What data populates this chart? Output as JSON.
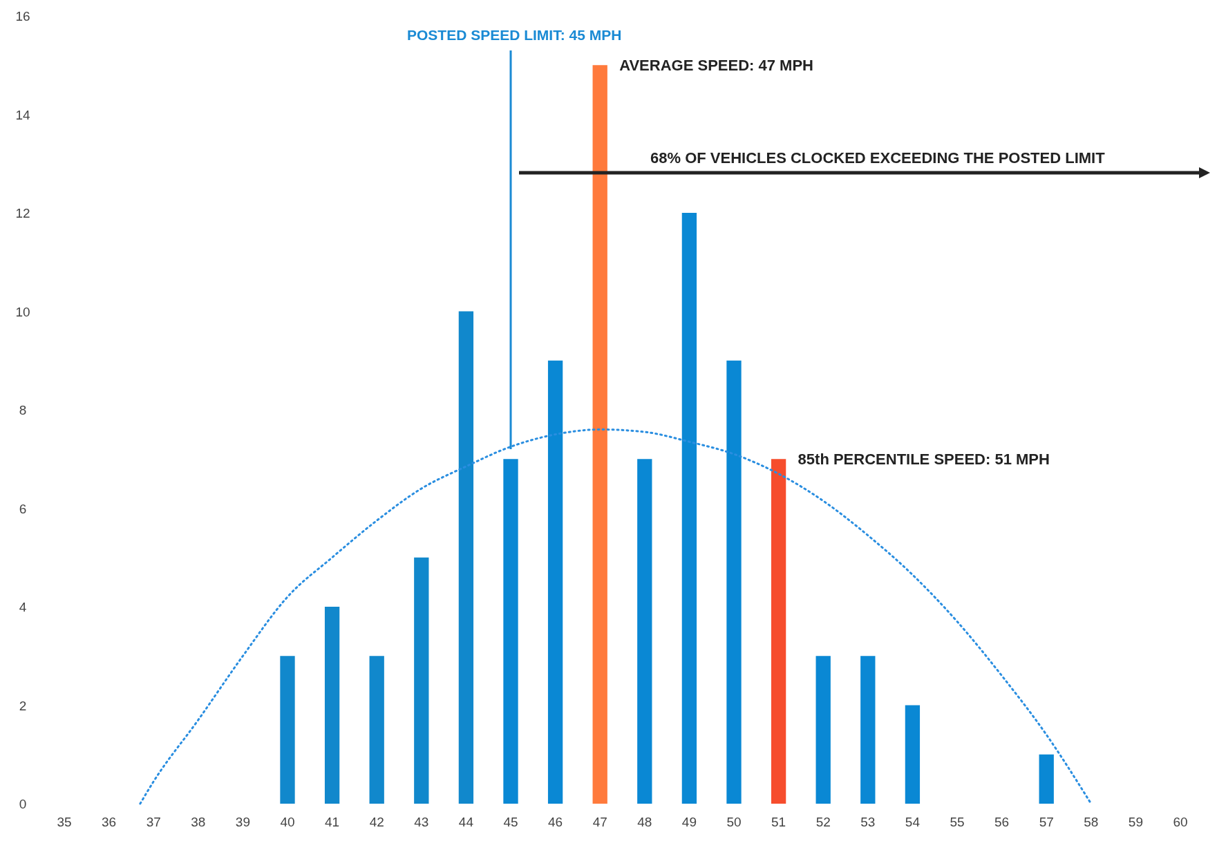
{
  "chart_data": {
    "type": "bar",
    "x": [
      35,
      36,
      37,
      38,
      39,
      40,
      41,
      42,
      43,
      44,
      45,
      46,
      47,
      48,
      49,
      50,
      51,
      52,
      53,
      54,
      55,
      56,
      57,
      58,
      59,
      60
    ],
    "series": [
      {
        "values": [
          0,
          0,
          0,
          0,
          0,
          3,
          4,
          3,
          5,
          10,
          7,
          9,
          15,
          7,
          12,
          9,
          7,
          3,
          3,
          2,
          0,
          0,
          1,
          0,
          0,
          0
        ],
        "colors": [
          "#0a88d4",
          "#0a88d4",
          "#0a88d4",
          "#0a88d4",
          "#0a88d4",
          "#1188cc",
          "#1188cc",
          "#1188cc",
          "#1188cc",
          "#1188cc",
          "#0a88d4",
          "#0a88d4",
          "#ff7a3c",
          "#0a88d4",
          "#0a88d4",
          "#0a88d4",
          "#f64d2d",
          "#0a88d4",
          "#0a88d4",
          "#0a88d4",
          "#0a88d4",
          "#0a88d4",
          "#0a88d4",
          "#0a88d4",
          "#0a88d4",
          "#0a88d4"
        ]
      },
      {
        "type": "line",
        "color": "#2a8ee0",
        "line_style": "dotted",
        "x": [
          36.7,
          37,
          38,
          39,
          40,
          41,
          42,
          43,
          44,
          45,
          46,
          47,
          48,
          49,
          50,
          51,
          52,
          53,
          54,
          55,
          56,
          57,
          58
        ],
        "values": [
          0,
          0.45,
          1.7,
          3,
          4.2,
          5,
          5.75,
          6.4,
          6.85,
          7.25,
          7.5,
          7.6,
          7.55,
          7.35,
          7.1,
          6.7,
          6.15,
          5.45,
          4.65,
          3.7,
          2.6,
          1.4,
          0
        ]
      }
    ],
    "xlim": [
      35,
      60
    ],
    "xticks": [
      35,
      36,
      37,
      38,
      39,
      40,
      41,
      42,
      43,
      44,
      45,
      46,
      47,
      48,
      49,
      50,
      51,
      52,
      53,
      54,
      55,
      56,
      57,
      58,
      59,
      60
    ],
    "ylim": [
      0,
      16
    ],
    "yticks": [
      0,
      2,
      4,
      6,
      8,
      10,
      12,
      14,
      16
    ],
    "grid": false,
    "ref_lines": [
      {
        "axis": "x",
        "value": 45,
        "label": "POSTED SPEED LIMIT: 45 MPH",
        "color": "#1a8ad4"
      }
    ],
    "annotations": [
      {
        "text": "AVERAGE SPEED: 47 MPH",
        "x": 47,
        "y": 15
      },
      "68% OF VEHICLES CLOCKED EXCEEDING THE POSTED LIMIT",
      {
        "text": "85th PERCENTILE SPEED: 51 MPH",
        "x": 51,
        "y": 7
      }
    ]
  }
}
